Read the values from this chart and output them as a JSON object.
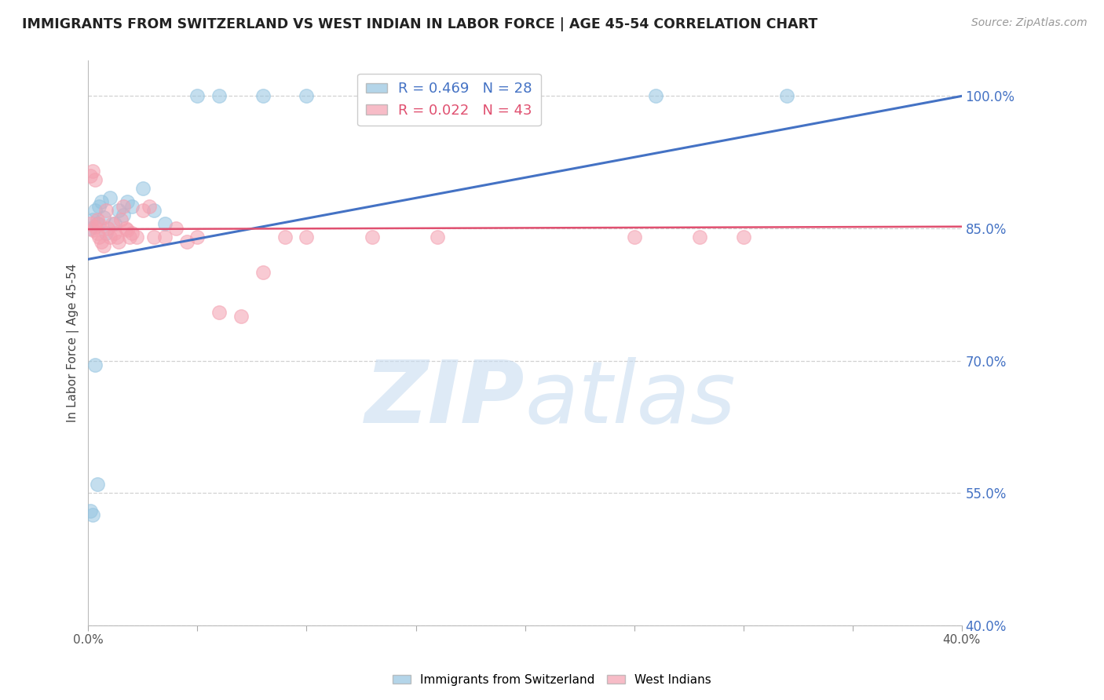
{
  "title": "IMMIGRANTS FROM SWITZERLAND VS WEST INDIAN IN LABOR FORCE | AGE 45-54 CORRELATION CHART",
  "source": "Source: ZipAtlas.com",
  "ylabel": "In Labor Force | Age 45-54",
  "swiss_R": 0.469,
  "swiss_N": 28,
  "wi_R": 0.022,
  "wi_N": 43,
  "swiss_color": "#94c4e0",
  "wi_color": "#f4a0b0",
  "swiss_line_color": "#4472c4",
  "wi_line_color": "#e05070",
  "background_color": "#ffffff",
  "xlim": [
    0.0,
    0.4
  ],
  "ylim": [
    0.4,
    1.04
  ],
  "yticks": [
    0.4,
    0.55,
    0.7,
    0.85,
    1.0
  ],
  "ytick_labels": [
    "40.0%",
    "55.0%",
    "70.0%",
    "85.0%",
    "100.0%"
  ],
  "xticks": [
    0.0,
    0.05,
    0.1,
    0.15,
    0.2,
    0.25,
    0.3,
    0.35,
    0.4
  ],
  "xtick_labels": [
    "0.0%",
    "",
    "",
    "",
    "",
    "",
    "",
    "",
    "40.0%"
  ],
  "swiss_x": [
    0.001,
    0.002,
    0.003,
    0.004,
    0.005,
    0.006,
    0.007,
    0.008,
    0.01,
    0.012,
    0.014,
    0.016,
    0.018,
    0.02,
    0.025,
    0.03,
    0.035,
    0.05,
    0.06,
    0.08,
    0.1,
    0.17,
    0.26,
    0.32,
    0.001,
    0.002,
    0.003,
    0.004
  ],
  "swiss_y": [
    0.85,
    0.86,
    0.87,
    0.855,
    0.875,
    0.88,
    0.862,
    0.845,
    0.885,
    0.855,
    0.87,
    0.865,
    0.88,
    0.875,
    0.895,
    0.87,
    0.855,
    1.0,
    1.0,
    1.0,
    1.0,
    1.0,
    1.0,
    1.0,
    0.53,
    0.525,
    0.695,
    0.56
  ],
  "wi_x": [
    0.001,
    0.001,
    0.002,
    0.002,
    0.003,
    0.003,
    0.004,
    0.004,
    0.005,
    0.005,
    0.006,
    0.007,
    0.008,
    0.009,
    0.01,
    0.011,
    0.012,
    0.013,
    0.014,
    0.015,
    0.016,
    0.017,
    0.018,
    0.019,
    0.02,
    0.022,
    0.025,
    0.028,
    0.03,
    0.035,
    0.04,
    0.045,
    0.05,
    0.06,
    0.07,
    0.08,
    0.09,
    0.1,
    0.13,
    0.16,
    0.25,
    0.28,
    0.3
  ],
  "wi_y": [
    0.855,
    0.91,
    0.848,
    0.915,
    0.852,
    0.905,
    0.86,
    0.845,
    0.855,
    0.84,
    0.835,
    0.83,
    0.87,
    0.85,
    0.84,
    0.855,
    0.845,
    0.84,
    0.835,
    0.86,
    0.875,
    0.85,
    0.848,
    0.84,
    0.845,
    0.84,
    0.87,
    0.875,
    0.84,
    0.84,
    0.85,
    0.835,
    0.84,
    0.755,
    0.75,
    0.8,
    0.84,
    0.84,
    0.84,
    0.84,
    0.84,
    0.84,
    0.84
  ],
  "swiss_trend_x": [
    0.0,
    0.4
  ],
  "swiss_trend_y": [
    0.815,
    1.0
  ],
  "wi_trend_x": [
    0.0,
    0.4
  ],
  "wi_trend_y": [
    0.849,
    0.852
  ]
}
